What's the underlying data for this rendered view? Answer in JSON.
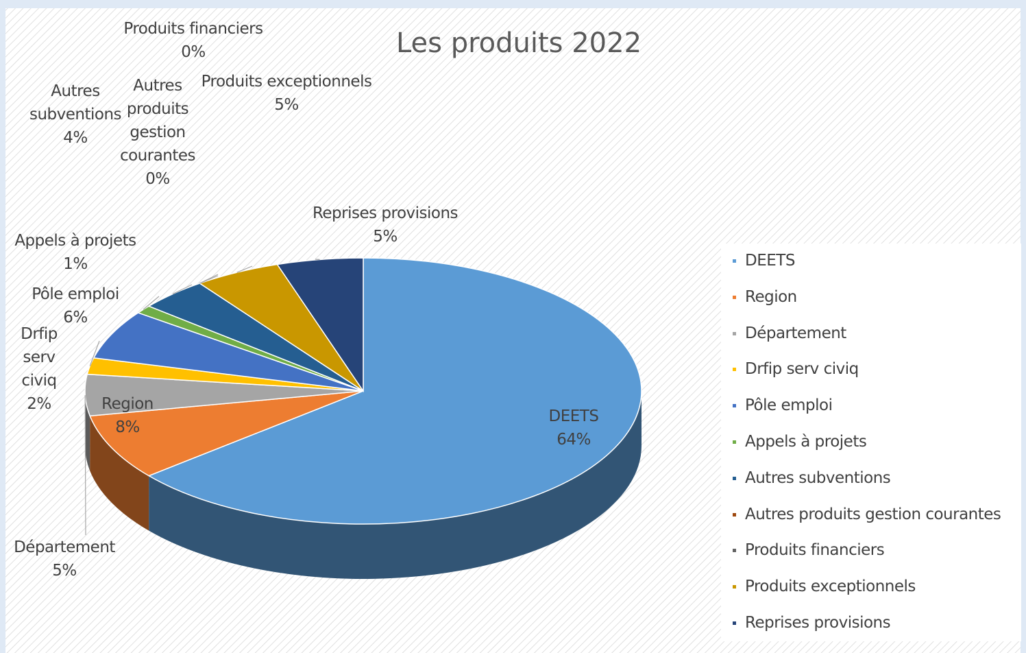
{
  "chart_data": {
    "type": "pie",
    "title": "Les produits 2022",
    "categories": [
      "DEETS",
      "Region",
      "Département",
      "Drfip serv civiq",
      "Pôle emploi",
      "Appels à projets",
      "Autres subventions",
      "Autres produits gestion courantes",
      "Produits financiers",
      "Produits exceptionnels",
      "Reprises provisions"
    ],
    "values": [
      64,
      8,
      5,
      2,
      6,
      1,
      4,
      0,
      0,
      5,
      5
    ],
    "value_labels": [
      "64%",
      "8%",
      "5%",
      "2%",
      "6%",
      "1%",
      "4%",
      "0%",
      "0%",
      "5%",
      "5%"
    ],
    "colors": [
      "#5b9bd5",
      "#ed7d31",
      "#a5a5a5",
      "#ffc000",
      "#4472c4",
      "#70ad47",
      "#255e91",
      "#9e480e",
      "#636363",
      "#c99700",
      "#264478"
    ],
    "legend": "right"
  }
}
